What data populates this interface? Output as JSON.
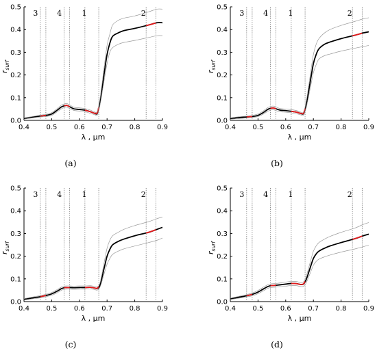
{
  "chart_data": [
    {
      "type": "line",
      "panel_label": "(a)",
      "xlabel": "λ , µm",
      "ylabel": "r",
      "ylabel_sub": "surf",
      "xlim": [
        0.4,
        0.9
      ],
      "ylim": [
        0.0,
        0.5
      ],
      "xticks": [
        "0.4",
        "0.5",
        "0.6",
        "0.7",
        "0.8",
        "0.9"
      ],
      "yticks": [
        "0.0",
        "0.1",
        "0.2",
        "0.3",
        "0.4",
        "0.5"
      ],
      "bands": [
        {
          "label": "3",
          "x": [
            0.459,
            0.479
          ]
        },
        {
          "label": "4",
          "x": [
            0.545,
            0.565
          ]
        },
        {
          "label": "1",
          "x": [
            0.62,
            0.67
          ]
        },
        {
          "label": "2",
          "x": [
            0.841,
            0.876
          ]
        }
      ],
      "series": [
        {
          "role": "mean",
          "x": [
            0.4,
            0.43,
            0.46,
            0.48,
            0.5,
            0.52,
            0.535,
            0.545,
            0.555,
            0.565,
            0.58,
            0.6,
            0.62,
            0.64,
            0.655,
            0.665,
            0.675,
            0.69,
            0.7,
            0.71,
            0.72,
            0.74,
            0.76,
            0.8,
            0.85,
            0.88,
            0.9
          ],
          "y": [
            0.008,
            0.014,
            0.019,
            0.022,
            0.028,
            0.045,
            0.059,
            0.064,
            0.066,
            0.06,
            0.051,
            0.048,
            0.045,
            0.038,
            0.031,
            0.032,
            0.085,
            0.21,
            0.29,
            0.34,
            0.37,
            0.385,
            0.395,
            0.405,
            0.42,
            0.43,
            0.43
          ]
        },
        {
          "role": "upper",
          "x": [
            0.4,
            0.43,
            0.46,
            0.48,
            0.5,
            0.52,
            0.535,
            0.545,
            0.555,
            0.565,
            0.58,
            0.6,
            0.62,
            0.64,
            0.655,
            0.665,
            0.675,
            0.69,
            0.7,
            0.71,
            0.72,
            0.74,
            0.76,
            0.8,
            0.85,
            0.88,
            0.9
          ],
          "y": [
            0.011,
            0.017,
            0.023,
            0.027,
            0.034,
            0.052,
            0.067,
            0.072,
            0.074,
            0.068,
            0.058,
            0.055,
            0.052,
            0.045,
            0.037,
            0.04,
            0.1,
            0.24,
            0.33,
            0.38,
            0.42,
            0.44,
            0.45,
            0.46,
            0.478,
            0.49,
            0.49
          ]
        },
        {
          "role": "lower",
          "x": [
            0.4,
            0.43,
            0.46,
            0.48,
            0.5,
            0.52,
            0.535,
            0.545,
            0.555,
            0.565,
            0.58,
            0.6,
            0.62,
            0.64,
            0.655,
            0.665,
            0.675,
            0.69,
            0.7,
            0.71,
            0.72,
            0.74,
            0.76,
            0.8,
            0.85,
            0.88,
            0.9
          ],
          "y": [
            0.005,
            0.011,
            0.015,
            0.017,
            0.022,
            0.038,
            0.051,
            0.056,
            0.058,
            0.052,
            0.044,
            0.041,
            0.038,
            0.031,
            0.025,
            0.024,
            0.07,
            0.18,
            0.25,
            0.3,
            0.32,
            0.335,
            0.343,
            0.352,
            0.365,
            0.373,
            0.373
          ]
        }
      ]
    },
    {
      "type": "line",
      "panel_label": "(b)",
      "xlabel": "λ , µm",
      "ylabel": "r",
      "ylabel_sub": "surf",
      "xlim": [
        0.4,
        0.9
      ],
      "ylim": [
        0.0,
        0.5
      ],
      "xticks": [
        "0.4",
        "0.5",
        "0.6",
        "0.7",
        "0.8",
        "0.9"
      ],
      "yticks": [
        "0.0",
        "0.1",
        "0.2",
        "0.3",
        "0.4",
        "0.5"
      ],
      "bands": [
        {
          "label": "3",
          "x": [
            0.459,
            0.479
          ]
        },
        {
          "label": "4",
          "x": [
            0.545,
            0.565
          ]
        },
        {
          "label": "1",
          "x": [
            0.62,
            0.67
          ]
        },
        {
          "label": "2",
          "x": [
            0.841,
            0.876
          ]
        }
      ],
      "series": [
        {
          "role": "mean",
          "x": [
            0.4,
            0.43,
            0.46,
            0.48,
            0.5,
            0.52,
            0.535,
            0.545,
            0.555,
            0.565,
            0.58,
            0.6,
            0.62,
            0.64,
            0.655,
            0.665,
            0.675,
            0.69,
            0.7,
            0.71,
            0.72,
            0.74,
            0.76,
            0.8,
            0.85,
            0.88,
            0.9
          ],
          "y": [
            0.008,
            0.012,
            0.015,
            0.017,
            0.022,
            0.035,
            0.048,
            0.053,
            0.055,
            0.051,
            0.045,
            0.043,
            0.04,
            0.036,
            0.03,
            0.031,
            0.075,
            0.18,
            0.25,
            0.29,
            0.315,
            0.335,
            0.345,
            0.36,
            0.375,
            0.385,
            0.39
          ]
        },
        {
          "role": "upper",
          "x": [
            0.4,
            0.43,
            0.46,
            0.48,
            0.5,
            0.52,
            0.535,
            0.545,
            0.555,
            0.565,
            0.58,
            0.6,
            0.62,
            0.64,
            0.655,
            0.665,
            0.675,
            0.69,
            0.7,
            0.71,
            0.72,
            0.74,
            0.76,
            0.8,
            0.85,
            0.88,
            0.9
          ],
          "y": [
            0.011,
            0.016,
            0.019,
            0.022,
            0.028,
            0.042,
            0.056,
            0.061,
            0.063,
            0.059,
            0.052,
            0.05,
            0.047,
            0.043,
            0.036,
            0.038,
            0.09,
            0.21,
            0.29,
            0.335,
            0.36,
            0.385,
            0.4,
            0.418,
            0.436,
            0.447,
            0.452
          ]
        },
        {
          "role": "lower",
          "x": [
            0.4,
            0.43,
            0.46,
            0.48,
            0.5,
            0.52,
            0.535,
            0.545,
            0.555,
            0.565,
            0.58,
            0.6,
            0.62,
            0.64,
            0.655,
            0.665,
            0.675,
            0.69,
            0.7,
            0.71,
            0.72,
            0.74,
            0.76,
            0.8,
            0.85,
            0.88,
            0.9
          ],
          "y": [
            0.005,
            0.008,
            0.011,
            0.013,
            0.017,
            0.028,
            0.04,
            0.045,
            0.047,
            0.043,
            0.038,
            0.036,
            0.033,
            0.029,
            0.024,
            0.024,
            0.06,
            0.15,
            0.21,
            0.245,
            0.27,
            0.285,
            0.292,
            0.305,
            0.318,
            0.325,
            0.33
          ]
        }
      ]
    },
    {
      "type": "line",
      "panel_label": "(c)",
      "xlabel": "λ , µm",
      "ylabel": "r",
      "ylabel_sub": "surf",
      "xlim": [
        0.4,
        0.9
      ],
      "ylim": [
        0.0,
        0.5
      ],
      "xticks": [
        "0.4",
        "0.5",
        "0.6",
        "0.7",
        "0.8",
        "0.9"
      ],
      "yticks": [
        "0.0",
        "0.1",
        "0.2",
        "0.3",
        "0.4",
        "0.5"
      ],
      "bands": [
        {
          "label": "3",
          "x": [
            0.459,
            0.479
          ]
        },
        {
          "label": "4",
          "x": [
            0.545,
            0.565
          ]
        },
        {
          "label": "1",
          "x": [
            0.62,
            0.67
          ]
        },
        {
          "label": "2",
          "x": [
            0.841,
            0.876
          ]
        }
      ],
      "series": [
        {
          "role": "mean",
          "x": [
            0.4,
            0.43,
            0.46,
            0.48,
            0.5,
            0.52,
            0.535,
            0.545,
            0.555,
            0.565,
            0.58,
            0.6,
            0.62,
            0.64,
            0.655,
            0.665,
            0.675,
            0.69,
            0.7,
            0.71,
            0.72,
            0.74,
            0.76,
            0.8,
            0.85,
            0.88,
            0.9
          ],
          "y": [
            0.01,
            0.016,
            0.022,
            0.027,
            0.034,
            0.046,
            0.057,
            0.061,
            0.062,
            0.062,
            0.061,
            0.062,
            0.062,
            0.063,
            0.06,
            0.058,
            0.075,
            0.15,
            0.2,
            0.23,
            0.25,
            0.265,
            0.275,
            0.29,
            0.305,
            0.318,
            0.327
          ]
        },
        {
          "role": "upper",
          "x": [
            0.4,
            0.43,
            0.46,
            0.48,
            0.5,
            0.52,
            0.535,
            0.545,
            0.555,
            0.565,
            0.58,
            0.6,
            0.62,
            0.64,
            0.655,
            0.665,
            0.675,
            0.69,
            0.7,
            0.71,
            0.72,
            0.74,
            0.76,
            0.8,
            0.85,
            0.88,
            0.9
          ],
          "y": [
            0.013,
            0.02,
            0.027,
            0.032,
            0.04,
            0.053,
            0.064,
            0.068,
            0.069,
            0.069,
            0.068,
            0.069,
            0.069,
            0.07,
            0.067,
            0.065,
            0.085,
            0.175,
            0.235,
            0.27,
            0.29,
            0.305,
            0.318,
            0.335,
            0.352,
            0.365,
            0.373
          ]
        },
        {
          "role": "lower",
          "x": [
            0.4,
            0.43,
            0.46,
            0.48,
            0.5,
            0.52,
            0.535,
            0.545,
            0.555,
            0.565,
            0.58,
            0.6,
            0.62,
            0.64,
            0.655,
            0.665,
            0.675,
            0.69,
            0.7,
            0.71,
            0.72,
            0.74,
            0.76,
            0.8,
            0.85,
            0.88,
            0.9
          ],
          "y": [
            0.007,
            0.012,
            0.017,
            0.022,
            0.028,
            0.039,
            0.05,
            0.054,
            0.055,
            0.055,
            0.054,
            0.055,
            0.055,
            0.056,
            0.053,
            0.051,
            0.065,
            0.125,
            0.165,
            0.19,
            0.208,
            0.222,
            0.232,
            0.245,
            0.26,
            0.27,
            0.28
          ]
        }
      ]
    },
    {
      "type": "line",
      "panel_label": "(d)",
      "xlabel": "λ , µm",
      "ylabel": "r",
      "ylabel_sub": "surf",
      "xlim": [
        0.4,
        0.9
      ],
      "ylim": [
        0.0,
        0.5
      ],
      "xticks": [
        "0.4",
        "0.5",
        "0.6",
        "0.7",
        "0.8",
        "0.9"
      ],
      "yticks": [
        "0.0",
        "0.1",
        "0.2",
        "0.3",
        "0.4",
        "0.5"
      ],
      "bands": [
        {
          "label": "3",
          "x": [
            0.459,
            0.479
          ]
        },
        {
          "label": "4",
          "x": [
            0.545,
            0.565
          ]
        },
        {
          "label": "1",
          "x": [
            0.62,
            0.67
          ]
        },
        {
          "label": "2",
          "x": [
            0.841,
            0.876
          ]
        }
      ],
      "series": [
        {
          "role": "mean",
          "x": [
            0.4,
            0.43,
            0.46,
            0.48,
            0.5,
            0.52,
            0.535,
            0.545,
            0.555,
            0.565,
            0.58,
            0.6,
            0.62,
            0.64,
            0.655,
            0.665,
            0.675,
            0.69,
            0.7,
            0.71,
            0.72,
            0.74,
            0.76,
            0.8,
            0.85,
            0.88,
            0.9
          ],
          "y": [
            0.012,
            0.019,
            0.026,
            0.032,
            0.042,
            0.056,
            0.066,
            0.07,
            0.071,
            0.072,
            0.074,
            0.077,
            0.08,
            0.079,
            0.075,
            0.078,
            0.1,
            0.155,
            0.19,
            0.21,
            0.222,
            0.235,
            0.245,
            0.26,
            0.277,
            0.29,
            0.297
          ]
        },
        {
          "role": "upper",
          "x": [
            0.4,
            0.43,
            0.46,
            0.48,
            0.5,
            0.52,
            0.535,
            0.545,
            0.555,
            0.565,
            0.58,
            0.6,
            0.62,
            0.64,
            0.655,
            0.665,
            0.675,
            0.69,
            0.7,
            0.71,
            0.72,
            0.74,
            0.76,
            0.8,
            0.85,
            0.88,
            0.9
          ],
          "y": [
            0.015,
            0.023,
            0.031,
            0.038,
            0.049,
            0.064,
            0.074,
            0.078,
            0.079,
            0.08,
            0.082,
            0.086,
            0.089,
            0.088,
            0.084,
            0.088,
            0.115,
            0.18,
            0.222,
            0.245,
            0.26,
            0.275,
            0.287,
            0.305,
            0.324,
            0.34,
            0.348
          ]
        },
        {
          "role": "lower",
          "x": [
            0.4,
            0.43,
            0.46,
            0.48,
            0.5,
            0.52,
            0.535,
            0.545,
            0.555,
            0.565,
            0.58,
            0.6,
            0.62,
            0.64,
            0.655,
            0.665,
            0.675,
            0.69,
            0.7,
            0.71,
            0.72,
            0.74,
            0.76,
            0.8,
            0.85,
            0.88,
            0.9
          ],
          "y": [
            0.009,
            0.015,
            0.021,
            0.026,
            0.035,
            0.048,
            0.058,
            0.062,
            0.063,
            0.064,
            0.066,
            0.068,
            0.071,
            0.07,
            0.066,
            0.068,
            0.085,
            0.13,
            0.16,
            0.177,
            0.187,
            0.197,
            0.205,
            0.218,
            0.232,
            0.242,
            0.248
          ]
        }
      ]
    }
  ],
  "colors": {
    "mean_line": "#000000",
    "envelope_line": "#9a9a9a",
    "band_line": "#555555",
    "band_highlight": "#e41a1c",
    "axis": "#000000"
  }
}
